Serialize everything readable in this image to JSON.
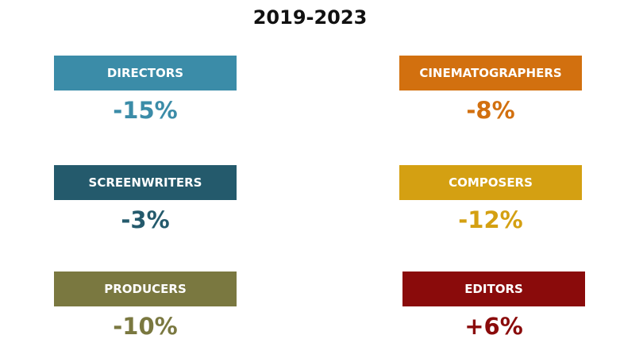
{
  "title": "2019-2023",
  "tiles": [
    {
      "label": "DIRECTORS",
      "value": "-15%",
      "color": "#3b8ca8"
    },
    {
      "label": "CINEMATOGRAPHERS",
      "value": "-8%",
      "color": "#d2700f"
    },
    {
      "label": "SCREENWRITERS",
      "value": "-3%",
      "color": "#245a6c"
    },
    {
      "label": "COMPOSERS",
      "value": "-12%",
      "color": "#d4a012"
    },
    {
      "label": "PRODUCERS",
      "value": "-10%",
      "color": "#7a7840"
    },
    {
      "label": "EDITORS",
      "value": "+6%",
      "color": "#8a0b0b"
    }
  ]
}
